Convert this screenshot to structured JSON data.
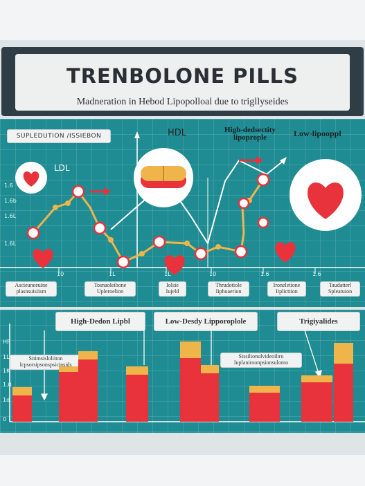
{
  "header": {
    "title": "TRENBOLONE PILLS",
    "subtitle": "Madneration in Hebod Lipopolloal due to trigllyseides"
  },
  "top_chart": {
    "section_label": "SUPLEDUTION /ISSIEBON",
    "legend": {
      "ldl": "LDL",
      "hdl": "HDL",
      "high_density": "High-dedsectity\nlipoprople",
      "low_density": "Low-lipooppl"
    },
    "y_ticks": [
      "1.6",
      "1.6b",
      "1.6L",
      "1.6L"
    ],
    "x_ticks": [
      "10",
      "1L",
      "1L",
      "10",
      "1.6",
      "1.6"
    ],
    "category_labels": [
      "Ascieuneeuine\nplasnsuisiism",
      "Tosnaoleibone\nUpleroelion",
      "Iolsie\nIujeld",
      "Thrudotiole\nIiphoaerion",
      "Ironeletione\nIiplicttion",
      "Taudatterl\nSpleatuion"
    ]
  },
  "bottom_chart": {
    "labels": {
      "high": "High-Dedon Lipbl",
      "low": "Low-Desdy Lipporoplole",
      "trig": "Trigiyalides"
    },
    "notes": [
      "Sitimsisloliiton\nIcpsorsipsonspsicinsids",
      "Sissilionulvideoiliro\nIuplaniroonpsionsulomo"
    ],
    "y_ticks": [
      "HP",
      "1L",
      "1K",
      "1.0",
      "1d",
      "0"
    ]
  },
  "colors": {
    "teal": "#1e8c92",
    "red": "#e8323c",
    "gold": "#f0b54a",
    "dark": "#2f3e46"
  }
}
